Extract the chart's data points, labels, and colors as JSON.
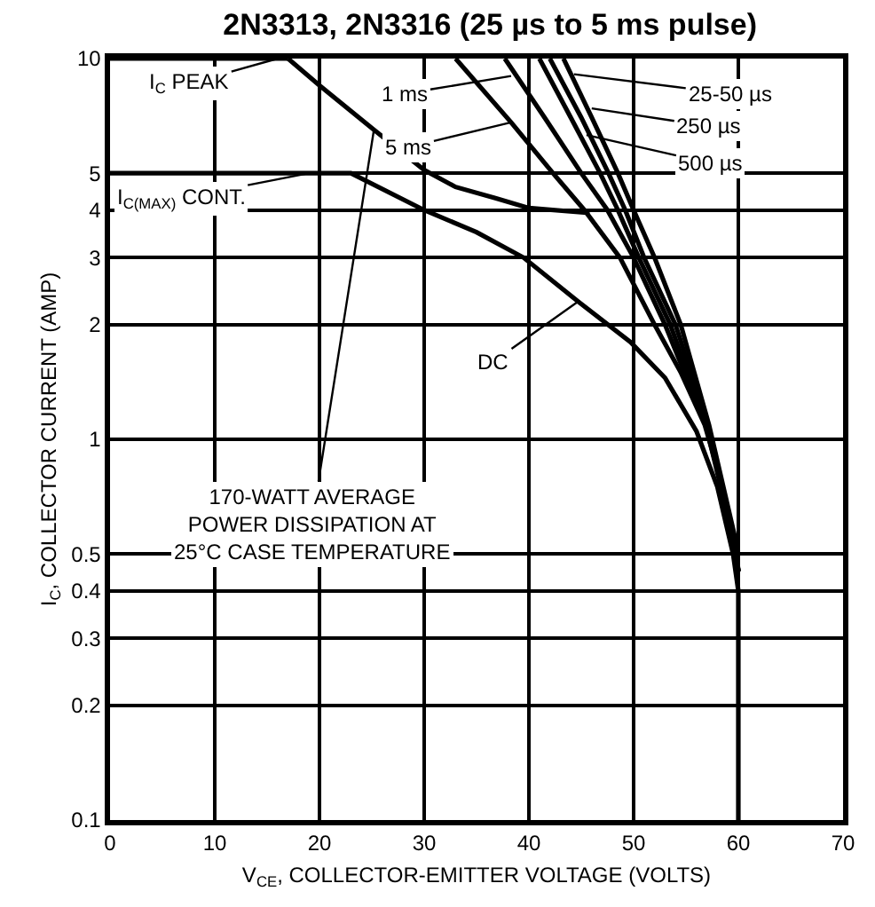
{
  "chart_data": {
    "type": "line",
    "title": "2N3313, 2N3316 (25 µs to 5 ms pulse)",
    "xlabel": "V$_{CE}$, COLLECTOR-EMITTER VOLTAGE (VOLTS)",
    "ylabel": "I$_{C}$, COLLECTOR CURRENT (AMP)",
    "log": "y",
    "grid": true,
    "marker": "none",
    "line_style": "solid",
    "xlim": [
      0,
      70
    ],
    "xticks": [
      0,
      10,
      20,
      30,
      40,
      50,
      60,
      70
    ],
    "ylim": [
      0.1,
      10
    ],
    "yticks": [
      0.1,
      0.2,
      0.3,
      0.4,
      0.5,
      1,
      2,
      3,
      4,
      5,
      10
    ],
    "series": [
      {
        "color": "#000000",
        "x": [
          0,
          17
        ],
        "values": [
          10,
          10
        ]
      },
      {
        "color": "#000000",
        "x": [
          0,
          23,
          30,
          35,
          39.5,
          44.7,
          49.7,
          53,
          56,
          58,
          59.5,
          60,
          60
        ],
        "values": [
          5,
          5,
          4,
          3.5,
          3,
          2.3,
          1.8,
          1.45,
          1.05,
          0.75,
          0.5,
          0.4,
          0.1
        ]
      },
      {
        "color": "#000000",
        "x": [
          17,
          20,
          25.2,
          30,
          33,
          36.8,
          40,
          45.8
        ],
        "values": [
          10,
          8.5,
          6.5,
          5.1,
          4.6,
          4.3,
          4.05,
          3.93
        ]
      },
      {
        "color": "#000000",
        "x": [
          33,
          38.3,
          42.3,
          45.3,
          48.7,
          52,
          54.5,
          56.8,
          58.5,
          59.5,
          60
        ],
        "values": [
          10,
          6.8,
          5,
          4,
          3,
          2,
          1.5,
          1.09,
          0.75,
          0.55,
          0.45
        ]
      },
      {
        "color": "#000000",
        "x": [
          37.7,
          41.5,
          45,
          47.5,
          50,
          53,
          56.9,
          59.5,
          60
        ],
        "values": [
          10,
          7,
          5,
          4,
          3,
          2,
          1.09,
          0.55,
          0.45
        ]
      },
      {
        "color": "#000000",
        "x": [
          41,
          44,
          46.8,
          48.5,
          50.5,
          53.5,
          57,
          59.6,
          60
        ],
        "values": [
          10,
          7,
          5,
          4,
          3,
          2,
          1.09,
          0.55,
          0.45
        ]
      },
      {
        "color": "#000000",
        "x": [
          42,
          45,
          47.6,
          49.2,
          51,
          54,
          57.1,
          59.6,
          60
        ],
        "values": [
          10,
          7,
          5,
          4,
          3,
          2,
          1.09,
          0.55,
          0.45
        ]
      },
      {
        "color": "#000000",
        "x": [
          43.3,
          46,
          48.5,
          50,
          52,
          54.5,
          57.2,
          59.7,
          60
        ],
        "values": [
          10,
          7,
          5,
          4,
          3,
          2,
          1.09,
          0.55,
          0.45
        ]
      }
    ],
    "annotations": [
      {
        "text": "I$_{C}$ PEAK",
        "x": 16,
        "y": 10
      },
      {
        "text": "I$_{C(MAX)}$ CONT.",
        "x": 19,
        "y": 5
      },
      {
        "text": "1 ms",
        "x": 38.3,
        "y": 9
      },
      {
        "text": "5 ms",
        "x": 38.3,
        "y": 6.8
      },
      {
        "text": "25-50 µs",
        "x": 44.3,
        "y": 9.1
      },
      {
        "text": "250 µs",
        "x": 46,
        "y": 7.4
      },
      {
        "text": "500 µs",
        "x": 45.5,
        "y": 6.3
      },
      {
        "text": "DC",
        "x": 44.7,
        "y": 2.3
      },
      {
        "text": "170-WATT AVERAGE\nPOWER DISSIPATION AT\n25°C CASE TEMPERATURE",
        "x": 25.2,
        "y": 6.5
      }
    ]
  }
}
